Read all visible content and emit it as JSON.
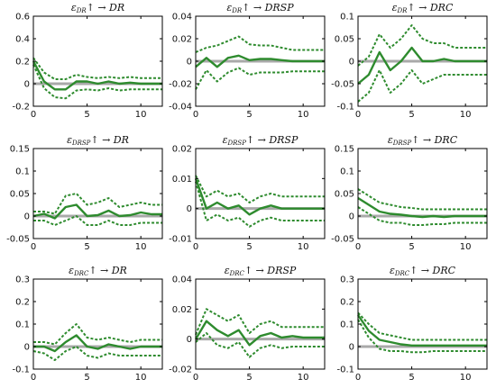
{
  "chart_data": [
    {
      "type": "line",
      "title": "ε_DR↑ → DR",
      "ylim": [
        -0.2,
        0.6
      ],
      "yticks": [
        "-0.2",
        "0",
        "0.2",
        "0.4",
        "0.6"
      ],
      "xlim": [
        0,
        12
      ],
      "xticks": [
        "0",
        "5",
        "10"
      ],
      "x": [
        0,
        1,
        2,
        3,
        4,
        5,
        6,
        7,
        8,
        9,
        10,
        11,
        12
      ],
      "series": [
        {
          "values": [
            0.2,
            0.02,
            -0.05,
            -0.05,
            0.02,
            0.02,
            0.0,
            0.02,
            0.0,
            0.01,
            0.0,
            0.0,
            0.0
          ]
        },
        {
          "values": [
            0.23,
            0.1,
            0.04,
            0.04,
            0.08,
            0.06,
            0.05,
            0.06,
            0.05,
            0.06,
            0.05,
            0.05,
            0.05
          ]
        },
        {
          "values": [
            0.17,
            -0.04,
            -0.12,
            -0.13,
            -0.06,
            -0.05,
            -0.06,
            -0.04,
            -0.06,
            -0.05,
            -0.05,
            -0.05,
            -0.05
          ]
        }
      ]
    },
    {
      "type": "line",
      "title": "ε_DR↑ → DRSP",
      "ylim": [
        -0.04,
        0.04
      ],
      "yticks": [
        "-0.04",
        "-0.02",
        "0",
        "0.02",
        "0.04"
      ],
      "xlim": [
        0,
        12
      ],
      "xticks": [
        "0",
        "5",
        "10"
      ],
      "x": [
        0,
        1,
        2,
        3,
        4,
        5,
        6,
        7,
        8,
        9,
        10,
        11,
        12
      ],
      "series": [
        {
          "values": [
            -0.005,
            0.003,
            -0.005,
            0.003,
            0.005,
            0.001,
            0.002,
            0.002,
            0.001,
            0.0,
            0.0,
            0.0,
            0.0
          ]
        },
        {
          "values": [
            0.008,
            0.012,
            0.014,
            0.018,
            0.022,
            0.015,
            0.014,
            0.014,
            0.012,
            0.01,
            0.01,
            0.01,
            0.01
          ]
        },
        {
          "values": [
            -0.025,
            -0.008,
            -0.018,
            -0.01,
            -0.006,
            -0.012,
            -0.01,
            -0.01,
            -0.01,
            -0.009,
            -0.009,
            -0.009,
            -0.009
          ]
        }
      ]
    },
    {
      "type": "line",
      "title": "ε_DR↑ → DRC",
      "ylim": [
        -0.1,
        0.1
      ],
      "yticks": [
        "-0.1",
        "-0.05",
        "0",
        "0.05",
        "0.1"
      ],
      "xlim": [
        0,
        12
      ],
      "xticks": [
        "0",
        "5",
        "10"
      ],
      "x": [
        0,
        1,
        2,
        3,
        4,
        5,
        6,
        7,
        8,
        9,
        10,
        11,
        12
      ],
      "series": [
        {
          "values": [
            -0.05,
            -0.03,
            0.02,
            -0.02,
            0.0,
            0.03,
            0.0,
            0.0,
            0.005,
            0.0,
            0.0,
            0.0,
            0.0
          ]
        },
        {
          "values": [
            -0.01,
            0.01,
            0.06,
            0.03,
            0.05,
            0.08,
            0.05,
            0.04,
            0.04,
            0.03,
            0.03,
            0.03,
            0.03
          ]
        },
        {
          "values": [
            -0.09,
            -0.07,
            -0.02,
            -0.07,
            -0.05,
            -0.02,
            -0.05,
            -0.04,
            -0.03,
            -0.03,
            -0.03,
            -0.03,
            -0.03
          ]
        }
      ]
    },
    {
      "type": "line",
      "title": "ε_DRSP↑ → DR",
      "ylim": [
        -0.05,
        0.15
      ],
      "yticks": [
        "-0.05",
        "0",
        "0.05",
        "0.1",
        "0.15"
      ],
      "xlim": [
        0,
        12
      ],
      "xticks": [
        "0",
        "5",
        "10"
      ],
      "x": [
        0,
        1,
        2,
        3,
        4,
        5,
        6,
        7,
        8,
        9,
        10,
        11,
        12
      ],
      "series": [
        {
          "values": [
            0.0,
            0.005,
            -0.005,
            0.02,
            0.025,
            0.0,
            0.002,
            0.012,
            0.0,
            0.002,
            0.008,
            0.004,
            0.004
          ]
        },
        {
          "values": [
            0.01,
            0.01,
            0.005,
            0.045,
            0.05,
            0.025,
            0.03,
            0.04,
            0.02,
            0.025,
            0.03,
            0.025,
            0.025
          ]
        },
        {
          "values": [
            -0.01,
            -0.01,
            -0.02,
            -0.01,
            0.0,
            -0.02,
            -0.02,
            -0.01,
            -0.02,
            -0.02,
            -0.015,
            -0.015,
            -0.015
          ]
        }
      ]
    },
    {
      "type": "line",
      "title": "ε_DRSP↑ → DRSP",
      "ylim": [
        -0.01,
        0.02
      ],
      "yticks": [
        "-0.01",
        "0",
        "0.01",
        "0.02"
      ],
      "xlim": [
        0,
        12
      ],
      "xticks": [
        "0",
        "5",
        "10"
      ],
      "x": [
        0,
        1,
        2,
        3,
        4,
        5,
        6,
        7,
        8,
        9,
        10,
        11,
        12
      ],
      "series": [
        {
          "values": [
            0.01,
            0.0,
            0.002,
            0.0,
            0.001,
            -0.002,
            0.0,
            0.001,
            0.0,
            0.0,
            0.0,
            0.0,
            0.0
          ]
        },
        {
          "values": [
            0.011,
            0.004,
            0.006,
            0.004,
            0.005,
            0.002,
            0.004,
            0.005,
            0.004,
            0.004,
            0.004,
            0.004,
            0.004
          ]
        },
        {
          "values": [
            0.009,
            -0.004,
            -0.002,
            -0.004,
            -0.003,
            -0.006,
            -0.004,
            -0.003,
            -0.004,
            -0.004,
            -0.004,
            -0.004,
            -0.004
          ]
        }
      ]
    },
    {
      "type": "line",
      "title": "ε_DRSP↑ → DRC",
      "ylim": [
        -0.05,
        0.15
      ],
      "yticks": [
        "-0.05",
        "0",
        "0.05",
        "0.1",
        "0.15"
      ],
      "xlim": [
        0,
        12
      ],
      "xticks": [
        "0",
        "5",
        "10"
      ],
      "x": [
        0,
        1,
        2,
        3,
        4,
        5,
        6,
        7,
        8,
        9,
        10,
        11,
        12
      ],
      "series": [
        {
          "values": [
            0.04,
            0.025,
            0.01,
            0.005,
            0.003,
            0.0,
            -0.002,
            0.0,
            -0.002,
            0.0,
            0.0,
            0.0,
            0.0
          ]
        },
        {
          "values": [
            0.06,
            0.045,
            0.03,
            0.025,
            0.02,
            0.018,
            0.015,
            0.015,
            0.015,
            0.015,
            0.015,
            0.015,
            0.015
          ]
        },
        {
          "values": [
            0.02,
            0.005,
            -0.01,
            -0.015,
            -0.015,
            -0.02,
            -0.02,
            -0.018,
            -0.018,
            -0.015,
            -0.015,
            -0.015,
            -0.015
          ]
        }
      ]
    },
    {
      "type": "line",
      "title": "ε_DRC↑ → DR",
      "ylim": [
        -0.1,
        0.3
      ],
      "yticks": [
        "-0.1",
        "0",
        "0.1",
        "0.2",
        "0.3"
      ],
      "xlim": [
        0,
        12
      ],
      "xticks": [
        "0",
        "5",
        "10"
      ],
      "x": [
        0,
        1,
        2,
        3,
        4,
        5,
        6,
        7,
        8,
        9,
        10,
        11,
        12
      ],
      "series": [
        {
          "values": [
            0.0,
            0.0,
            -0.02,
            0.02,
            0.05,
            0.0,
            -0.01,
            0.01,
            0.0,
            -0.01,
            0.0,
            0.0,
            0.0
          ]
        },
        {
          "values": [
            0.02,
            0.02,
            0.01,
            0.06,
            0.1,
            0.04,
            0.03,
            0.04,
            0.03,
            0.02,
            0.03,
            0.03,
            0.03
          ]
        },
        {
          "values": [
            -0.02,
            -0.03,
            -0.06,
            -0.02,
            0.0,
            -0.04,
            -0.05,
            -0.03,
            -0.04,
            -0.04,
            -0.04,
            -0.04,
            -0.04
          ]
        }
      ]
    },
    {
      "type": "line",
      "title": "ε_DRC↑ → DRSP",
      "ylim": [
        -0.02,
        0.04
      ],
      "yticks": [
        "-0.02",
        "0",
        "0.02",
        "0.04"
      ],
      "xlim": [
        0,
        12
      ],
      "xticks": [
        "0",
        "5",
        "10"
      ],
      "x": [
        0,
        1,
        2,
        3,
        4,
        5,
        6,
        7,
        8,
        9,
        10,
        11,
        12
      ],
      "series": [
        {
          "values": [
            0.0,
            0.012,
            0.006,
            0.002,
            0.006,
            -0.004,
            0.002,
            0.004,
            0.001,
            0.002,
            0.001,
            0.001,
            0.001
          ]
        },
        {
          "values": [
            0.003,
            0.02,
            0.016,
            0.012,
            0.016,
            0.004,
            0.01,
            0.012,
            0.008,
            0.008,
            0.008,
            0.008,
            0.008
          ]
        },
        {
          "values": [
            -0.002,
            0.004,
            -0.004,
            -0.006,
            -0.002,
            -0.012,
            -0.006,
            -0.004,
            -0.006,
            -0.005,
            -0.005,
            -0.005,
            -0.005
          ]
        }
      ]
    },
    {
      "type": "line",
      "title": "ε_DRC↑ → DRC",
      "ylim": [
        -0.1,
        0.3
      ],
      "yticks": [
        "-0.1",
        "0",
        "0.1",
        "0.2",
        "0.3"
      ],
      "xlim": [
        0,
        12
      ],
      "xticks": [
        "0",
        "5",
        "10"
      ],
      "x": [
        0,
        1,
        2,
        3,
        4,
        5,
        6,
        7,
        8,
        9,
        10,
        11,
        12
      ],
      "series": [
        {
          "values": [
            0.14,
            0.07,
            0.03,
            0.02,
            0.01,
            0.005,
            0.005,
            0.005,
            0.005,
            0.005,
            0.005,
            0.005,
            0.005
          ]
        },
        {
          "values": [
            0.15,
            0.1,
            0.06,
            0.05,
            0.04,
            0.03,
            0.03,
            0.03,
            0.03,
            0.03,
            0.03,
            0.03,
            0.03
          ]
        },
        {
          "values": [
            0.12,
            0.04,
            -0.01,
            -0.02,
            -0.02,
            -0.025,
            -0.025,
            -0.02,
            -0.02,
            -0.02,
            -0.02,
            -0.02,
            -0.02
          ]
        }
      ]
    }
  ]
}
